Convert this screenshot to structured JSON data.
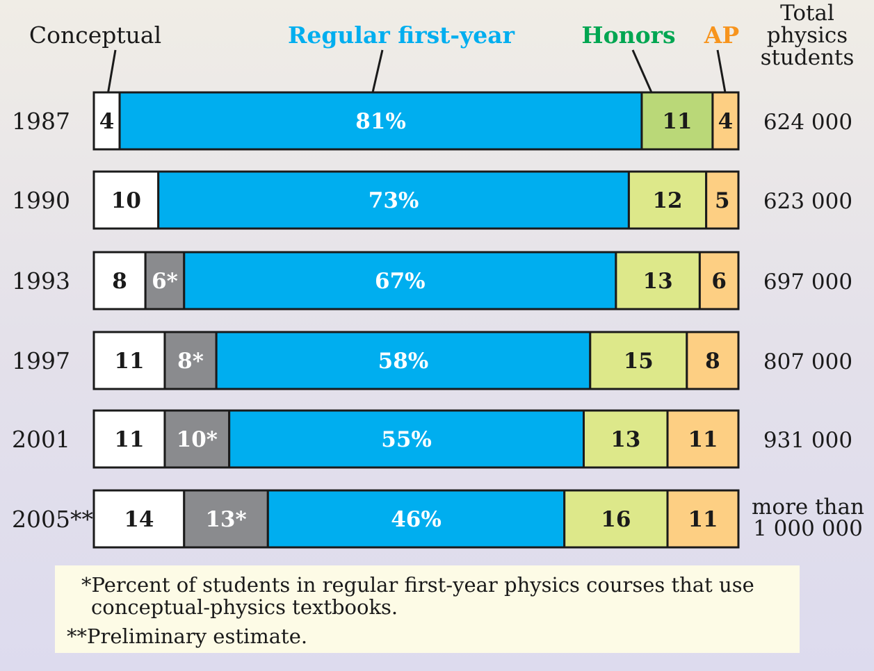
{
  "chart_data": {
    "type": "bar",
    "orientation": "horizontal",
    "stacked": true,
    "categories": [
      "1987",
      "1990",
      "1993",
      "1997",
      "2001",
      "2005**"
    ],
    "series": [
      {
        "name": "Conceptual",
        "color": "#ffffff",
        "values": [
          4,
          10,
          8,
          11,
          11,
          14
        ],
        "labels": [
          "4",
          "10",
          "8",
          "11",
          "11",
          "14"
        ]
      },
      {
        "name": "",
        "color": "#8a8b8e",
        "values": [
          0,
          0,
          6,
          8,
          10,
          13
        ],
        "labels": [
          "",
          "",
          "6*",
          "8*",
          "10*",
          "13*"
        ]
      },
      {
        "name": "Regular first-year",
        "color": "#00aeef",
        "values": [
          81,
          73,
          67,
          58,
          55,
          46
        ],
        "labels": [
          "81%",
          "73%",
          "67%",
          "58%",
          "55%",
          "46%"
        ]
      },
      {
        "name": "Honors",
        "color": "#dde88a",
        "values": [
          11,
          12,
          13,
          15,
          13,
          16
        ],
        "labels": [
          "11",
          "12",
          "13",
          "15",
          "13",
          "16"
        ]
      },
      {
        "name": "AP",
        "color": "#fdcf83",
        "values": [
          4,
          5,
          6,
          8,
          11,
          11
        ],
        "labels": [
          "4",
          "5",
          "6",
          "8",
          "11",
          "11"
        ]
      }
    ],
    "totals_header": [
      "Total",
      "physics",
      "students"
    ],
    "totals": [
      [
        "624 000"
      ],
      [
        "623 000"
      ],
      [
        "697 000"
      ],
      [
        "807 000"
      ],
      [
        "931 000"
      ],
      [
        "more than",
        "1 000 000"
      ]
    ],
    "header_colors": {
      "conceptual": "#1a1a1a",
      "regular": "#00aeef",
      "honors": "#00a651",
      "ap": "#f7941d"
    },
    "honors_1987_color": "#bad878",
    "xlim": [
      0,
      100
    ]
  },
  "footnotes": {
    "line1": "*Percent of students in regular first-year physics courses that use",
    "line2": "conceptual-physics textbooks.",
    "line3": "**Preliminary estimate."
  }
}
